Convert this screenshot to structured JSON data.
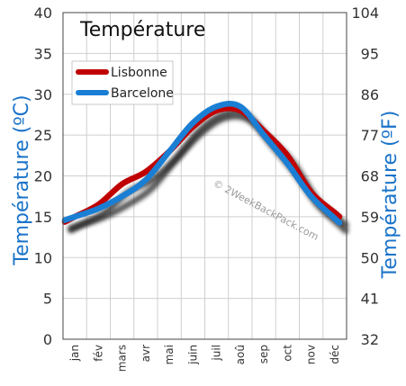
{
  "chart_data": {
    "type": "line",
    "title": "Température",
    "ylabel_left": "Température  (ºC)",
    "ylabel_right": "Température  (ºF)",
    "categories": [
      "jan",
      "fév",
      "mars",
      "avr",
      "mai",
      "juin",
      "juil",
      "aoû",
      "sep",
      "oct",
      "nov",
      "déc"
    ],
    "ylim": [
      0,
      40
    ],
    "yticks_left": [
      "0",
      "5",
      "10",
      "15",
      "20",
      "25",
      "30",
      "35",
      "40"
    ],
    "yticks_right": [
      "32",
      "41",
      "50",
      "59",
      "68",
      "77",
      "86",
      "95",
      "104"
    ],
    "grid": true,
    "legend_position": "top-left",
    "series": [
      {
        "name": "Lisbonne",
        "color": "#c00000",
        "values": [
          15.0,
          16.5,
          19.0,
          20.5,
          23.0,
          26.0,
          28.0,
          28.0,
          25.5,
          22.5,
          18.0,
          15.5
        ]
      },
      {
        "name": "Barcelone",
        "color": "#1a7fd4",
        "values": [
          15.0,
          16.0,
          17.5,
          19.5,
          23.0,
          26.5,
          28.5,
          28.5,
          25.0,
          21.5,
          17.5,
          14.8
        ]
      }
    ],
    "shadow_color": "#222222",
    "watermark": "© 2WeekBackPack.com"
  }
}
